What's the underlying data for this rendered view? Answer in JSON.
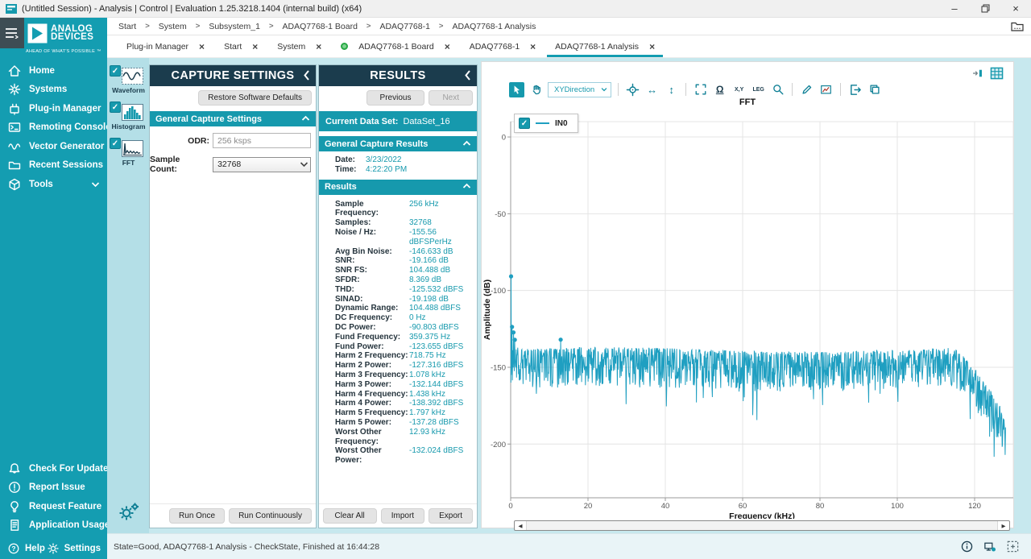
{
  "window": {
    "title": "(Untitled Session) - Analysis | Control | Evaluation 1.25.3218.1404 (internal build) (x64)",
    "controls": {
      "minimize": "–",
      "restore": "restore",
      "close": "×"
    }
  },
  "brand": {
    "line1": "ANALOG",
    "line2": "DEVICES",
    "tagline": "AHEAD OF WHAT'S POSSIBLE ™"
  },
  "breadcrumb": {
    "items": [
      "Start",
      "System",
      "Subsystem_1",
      "ADAQ7768-1 Board",
      "ADAQ7768-1",
      "ADAQ7768-1 Analysis"
    ]
  },
  "tabs": [
    {
      "label": "Plug-in Manager"
    },
    {
      "label": "Start"
    },
    {
      "label": "System"
    },
    {
      "label": "ADAQ7768-1 Board",
      "status_dot": true
    },
    {
      "label": "ADAQ7768-1"
    },
    {
      "label": "ADAQ7768-1 Analysis",
      "active": true
    }
  ],
  "sidebar": {
    "items": [
      {
        "label": "Home",
        "icon": "home-icon"
      },
      {
        "label": "Systems",
        "icon": "systems-icon"
      },
      {
        "label": "Plug-in Manager",
        "icon": "plugin-icon"
      },
      {
        "label": "Remoting Console",
        "icon": "remoting-console-icon"
      },
      {
        "label": "Vector Generator",
        "icon": "vector-generator-icon"
      },
      {
        "label": "Recent Sessions",
        "icon": "recent-sessions-icon",
        "expandable": true
      },
      {
        "label": "Tools",
        "icon": "tools-icon",
        "expandable": true
      }
    ],
    "bottom_items": [
      {
        "label": "Check For Updates",
        "icon": "bell-icon"
      },
      {
        "label": "Report Issue",
        "icon": "report-issue-icon"
      },
      {
        "label": "Request Feature",
        "icon": "lightbulb-icon"
      },
      {
        "label": "Application Usage Logging",
        "icon": "usage-log-icon"
      }
    ],
    "help_label": "Help",
    "settings_label": "Settings"
  },
  "tool_strip": {
    "views": [
      {
        "label": "Waveform",
        "icon": "waveform-icon",
        "checked": true
      },
      {
        "label": "Histogram",
        "icon": "histogram-icon",
        "checked": true
      },
      {
        "label": "FFT",
        "icon": "fft-icon",
        "checked": true
      }
    ]
  },
  "capture_settings": {
    "title": "CAPTURE SETTINGS",
    "restore_button": "Restore Software Defaults",
    "section": "General Capture Settings",
    "odr_label": "ODR:",
    "odr_value": "256 ksps",
    "sample_count_label": "Sample Count:",
    "sample_count_value": "32768",
    "run_once": "Run Once",
    "run_continuously": "Run Continuously"
  },
  "results": {
    "title": "RESULTS",
    "previous": "Previous",
    "next": "Next",
    "current_data_set_label": "Current Data Set:",
    "current_data_set": "DataSet_16",
    "general_section": "General Capture Results",
    "date_label": "Date:",
    "date": "3/23/2022",
    "time_label": "Time:",
    "time": "4:22:20 PM",
    "results_section": "Results",
    "entries": [
      {
        "label": "Sample Frequency:",
        "value": "256 kHz"
      },
      {
        "label": "Samples:",
        "value": "32768"
      },
      {
        "label": "Noise / Hz:",
        "value": "-155.56 dBFSPerHz"
      },
      {
        "label": "Avg Bin Noise:",
        "value": "-146.633 dB"
      },
      {
        "label": "SNR:",
        "value": "-19.166 dB"
      },
      {
        "label": "SNR FS:",
        "value": "104.488 dB"
      },
      {
        "label": "SFDR:",
        "value": "8.369 dB"
      },
      {
        "label": "THD:",
        "value": "-125.532 dBFS"
      },
      {
        "label": "SINAD:",
        "value": "-19.198 dB"
      },
      {
        "label": "Dynamic Range:",
        "value": "104.488 dBFS"
      },
      {
        "label": "DC Frequency:",
        "value": "0 Hz"
      },
      {
        "label": "DC Power:",
        "value": "-90.803 dBFS"
      },
      {
        "label": "Fund Frequency:",
        "value": "359.375 Hz"
      },
      {
        "label": "Fund Power:",
        "value": "-123.655 dBFS"
      },
      {
        "label": "Harm 2 Frequency:",
        "value": "718.75 Hz"
      },
      {
        "label": "Harm 2 Power:",
        "value": "-127.316 dBFS"
      },
      {
        "label": "Harm 3 Frequency:",
        "value": "1.078 kHz"
      },
      {
        "label": "Harm 3 Power:",
        "value": "-132.144 dBFS"
      },
      {
        "label": "Harm 4 Frequency:",
        "value": "1.438 kHz"
      },
      {
        "label": "Harm 4 Power:",
        "value": "-138.392 dBFS"
      },
      {
        "label": "Harm 5 Frequency:",
        "value": "1.797 kHz"
      },
      {
        "label": "Harm 5 Power:",
        "value": "-137.28 dBFS"
      },
      {
        "label": "Worst Other Frequency:",
        "value": "12.93 kHz"
      },
      {
        "label": "Worst Other Power:",
        "value": "-132.024 dBFS"
      }
    ],
    "clear_all": "Clear All",
    "import": "Import",
    "export": "Export"
  },
  "chart": {
    "toolbar_items": [
      {
        "kind": "button",
        "icon": "pointer-select-icon",
        "active": true
      },
      {
        "kind": "button",
        "icon": "pan-hand-icon"
      },
      {
        "kind": "dropdown",
        "label": "XYDirection",
        "icon": "chevron-down-icon"
      },
      {
        "kind": "separator"
      },
      {
        "kind": "button",
        "icon": "crosshair-icon"
      },
      {
        "kind": "button",
        "icon": "horizontal-arrows-icon",
        "glyph": "↔"
      },
      {
        "kind": "button",
        "icon": "vertical-arrows-icon",
        "glyph": "↕"
      },
      {
        "kind": "separator"
      },
      {
        "kind": "button",
        "icon": "fit-view-icon"
      },
      {
        "kind": "button",
        "icon": "omega-icon",
        "glyph": "Ω"
      },
      {
        "kind": "button",
        "icon": "xy-values-icon",
        "label": "X,Y"
      },
      {
        "kind": "button",
        "icon": "legend-toggle-icon",
        "label": "LEG"
      },
      {
        "kind": "button",
        "icon": "zoom-magnifier-icon"
      },
      {
        "kind": "separator"
      },
      {
        "kind": "button",
        "icon": "annotate-pen-icon"
      },
      {
        "kind": "button",
        "icon": "snapshot-chart-icon"
      },
      {
        "kind": "separator"
      },
      {
        "kind": "button",
        "icon": "export-data-icon"
      },
      {
        "kind": "button",
        "icon": "copy-image-icon"
      }
    ],
    "top_right_icons": [
      {
        "icon": "collapse-panel-icon"
      },
      {
        "icon": "data-grid-icon"
      }
    ]
  },
  "chart_data": {
    "type": "line",
    "title": "FFT",
    "xlabel": "Frequency (kHz)",
    "ylabel": "Amplitude (dB)",
    "xlim": [
      0,
      130
    ],
    "ylim": [
      -235,
      10
    ],
    "x_ticks": [
      0,
      20,
      40,
      60,
      80,
      100,
      120
    ],
    "y_ticks": [
      0,
      -50,
      -100,
      -150,
      -200
    ],
    "grid": true,
    "legend": {
      "position": "top-left",
      "entries": [
        {
          "name": "IN0",
          "color": "#1f9fc1",
          "checked": true
        }
      ]
    },
    "series": [
      {
        "name": "IN0",
        "color": "#1f9fc1",
        "peaks": [
          {
            "x_khz": 0.0,
            "y_dbfs": -90.803,
            "label": "DC"
          },
          {
            "x_khz": 0.359,
            "y_dbfs": -123.655,
            "label": "Fundamental"
          },
          {
            "x_khz": 0.719,
            "y_dbfs": -127.316,
            "label": "Harm 2"
          },
          {
            "x_khz": 1.078,
            "y_dbfs": -132.144,
            "label": "Harm 3"
          },
          {
            "x_khz": 1.438,
            "y_dbfs": -138.392,
            "label": "Harm 4"
          },
          {
            "x_khz": 1.797,
            "y_dbfs": -137.28,
            "label": "Harm 5"
          },
          {
            "x_khz": 12.93,
            "y_dbfs": -132.024,
            "label": "Worst Other"
          }
        ],
        "marker_points": [
          [
            0.1,
            -90.803
          ],
          [
            0.359,
            -123.655
          ],
          [
            0.719,
            -127.316
          ],
          [
            1.078,
            -132.144
          ],
          [
            12.93,
            -132.024
          ]
        ],
        "noise_floor": {
          "mean_dbfs": -151.5,
          "upper_envelope_dbfs": -138,
          "spike_depth_dbfs": -185,
          "rolloff_start_khz": 114,
          "end_khz": 128,
          "end_level_dbfs": -196
        },
        "gen": {
          "seed": 11,
          "points": 1300
        }
      }
    ]
  },
  "status_bar": {
    "text": "State=Good, ADAQ7768-1 Analysis - CheckState, Finished at 16:44:28",
    "icons": [
      {
        "icon": "info-icon"
      },
      {
        "icon": "device-status-icon"
      },
      {
        "icon": "selection-frame-icon"
      }
    ]
  },
  "colors": {
    "brand_teal": "#149db1",
    "dark_navy": "#1b3c4d",
    "section_teal": "#1699ad",
    "trace_teal": "#1f9fc1",
    "board_status_green": "#27a844"
  }
}
